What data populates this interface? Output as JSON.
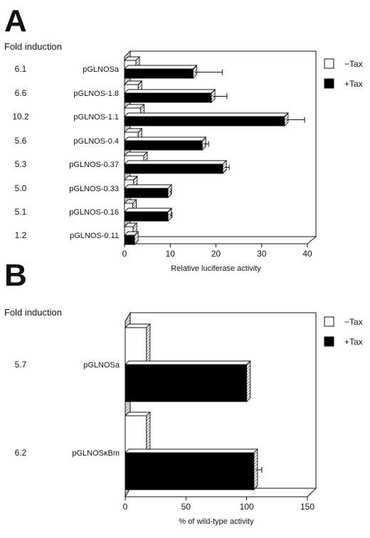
{
  "panel_a": {
    "letter": "A",
    "fold_header": "Fold induction",
    "fold_values": [
      "6.1",
      "6.6",
      "10.2",
      "5.6",
      "5.3",
      "5.0",
      "5.1",
      "1.2"
    ],
    "legend": [
      {
        "label": "−Tax",
        "color": "#ffffff"
      },
      {
        "label": "+Tax",
        "color": "#000000"
      }
    ]
  },
  "panel_b": {
    "letter": "B",
    "fold_header": "Fold induction",
    "fold_values": [
      "5.7",
      "6.2"
    ],
    "legend": [
      {
        "label": "−Tax",
        "color": "#ffffff"
      },
      {
        "label": "+Tax",
        "color": "#000000"
      }
    ]
  },
  "chart_data": [
    {
      "type": "bar",
      "orientation": "horizontal",
      "categories": [
        "pGLNOSa",
        "pGLNOS-1.8",
        "pGLNOS-1.1",
        "pGLNOS-0.4",
        "pGLNOS-0.37",
        "pGLNOS-0.33",
        "pGLNOS-0.16",
        "pGLNOS-0.11"
      ],
      "series": [
        {
          "name": "−Tax",
          "values": [
            2.5,
            3.0,
            3.5,
            3.0,
            4.2,
            2.0,
            1.8,
            1.9
          ]
        },
        {
          "name": "+Tax",
          "values": [
            15,
            19,
            35,
            17,
            21.5,
            9.5,
            9.5,
            2.2
          ],
          "error": [
            6,
            3,
            4,
            1,
            1,
            0.3,
            0.5,
            0
          ]
        }
      ],
      "xlabel": "Relative luciferase activity",
      "xlim": [
        0,
        40
      ],
      "xticks": [
        0,
        10,
        20,
        30,
        40
      ],
      "legend_position": "right"
    },
    {
      "type": "bar",
      "orientation": "horizontal",
      "categories": [
        "pGLNOSa",
        "pGLNOSκBm"
      ],
      "series": [
        {
          "name": "−Tax",
          "values": [
            17.5,
            17.5
          ]
        },
        {
          "name": "+Tax",
          "values": [
            100,
            106
          ],
          "error": [
            0,
            5
          ]
        }
      ],
      "xlabel": "% of wild-type activity",
      "xlim": [
        0,
        150
      ],
      "xticks": [
        0,
        50,
        100,
        150
      ],
      "legend_position": "right"
    }
  ]
}
